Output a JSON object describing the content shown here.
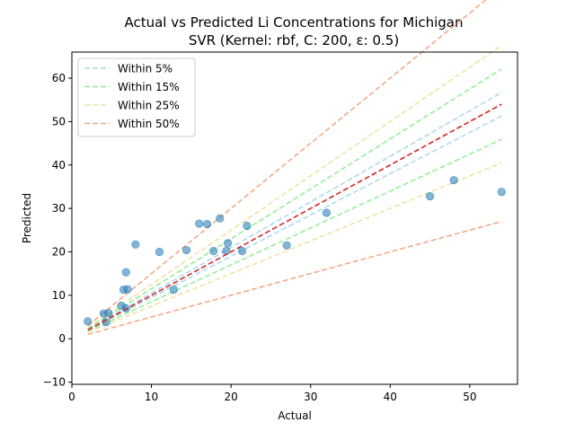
{
  "chart_data": {
    "type": "scatter",
    "title": "Actual vs Predicted Li Concentrations for Michigan",
    "subtitle": "SVR (Kernel: rbf, C: 200, ε: 0.5)",
    "xlabel": "Actual",
    "ylabel": "Predicted",
    "xlim": [
      0,
      56
    ],
    "ylim": [
      -10.5,
      66
    ],
    "xticks": [
      0,
      10,
      20,
      30,
      40,
      50
    ],
    "yticks": [
      -10,
      0,
      10,
      20,
      30,
      40,
      50,
      60
    ],
    "legend_position": "top-left",
    "grid": false,
    "colors": {
      "points": "#1f77b4",
      "within_5": "#a8d8e8",
      "within_15": "#90ee90",
      "within_25": "#f0e0a0",
      "within_50": "#f4a582",
      "ideal": "#d62728"
    },
    "bands": [
      {
        "name": "Within 5%",
        "pct": 5,
        "color": "#a8d8e8"
      },
      {
        "name": "Within 15%",
        "pct": 15,
        "color": "#90ee90"
      },
      {
        "name": "Within 25%",
        "pct": 25,
        "color": "#f0e0a0"
      },
      {
        "name": "Within 50%",
        "pct": 50,
        "color": "#f4a582"
      }
    ],
    "line_x_range": [
      2,
      54
    ],
    "points": [
      {
        "x": 2.0,
        "y": 4.0
      },
      {
        "x": 4.0,
        "y": 5.8
      },
      {
        "x": 4.3,
        "y": 3.8
      },
      {
        "x": 4.6,
        "y": 5.9
      },
      {
        "x": 6.2,
        "y": 7.6
      },
      {
        "x": 6.5,
        "y": 11.3
      },
      {
        "x": 6.8,
        "y": 15.3
      },
      {
        "x": 6.8,
        "y": 7.0
      },
      {
        "x": 7.0,
        "y": 11.4
      },
      {
        "x": 8.0,
        "y": 21.7
      },
      {
        "x": 11.0,
        "y": 20.0
      },
      {
        "x": 12.8,
        "y": 11.3
      },
      {
        "x": 14.4,
        "y": 20.4
      },
      {
        "x": 16.0,
        "y": 26.5
      },
      {
        "x": 17.0,
        "y": 26.4
      },
      {
        "x": 17.8,
        "y": 20.2
      },
      {
        "x": 18.6,
        "y": 27.7
      },
      {
        "x": 19.4,
        "y": 20.2
      },
      {
        "x": 19.6,
        "y": 22.0
      },
      {
        "x": 21.4,
        "y": 20.2
      },
      {
        "x": 22.0,
        "y": 26.0
      },
      {
        "x": 27.0,
        "y": 21.5
      },
      {
        "x": 32.0,
        "y": 29.0
      },
      {
        "x": 45.0,
        "y": 32.8
      },
      {
        "x": 48.0,
        "y": 36.5
      },
      {
        "x": 54.0,
        "y": 33.8
      }
    ]
  }
}
